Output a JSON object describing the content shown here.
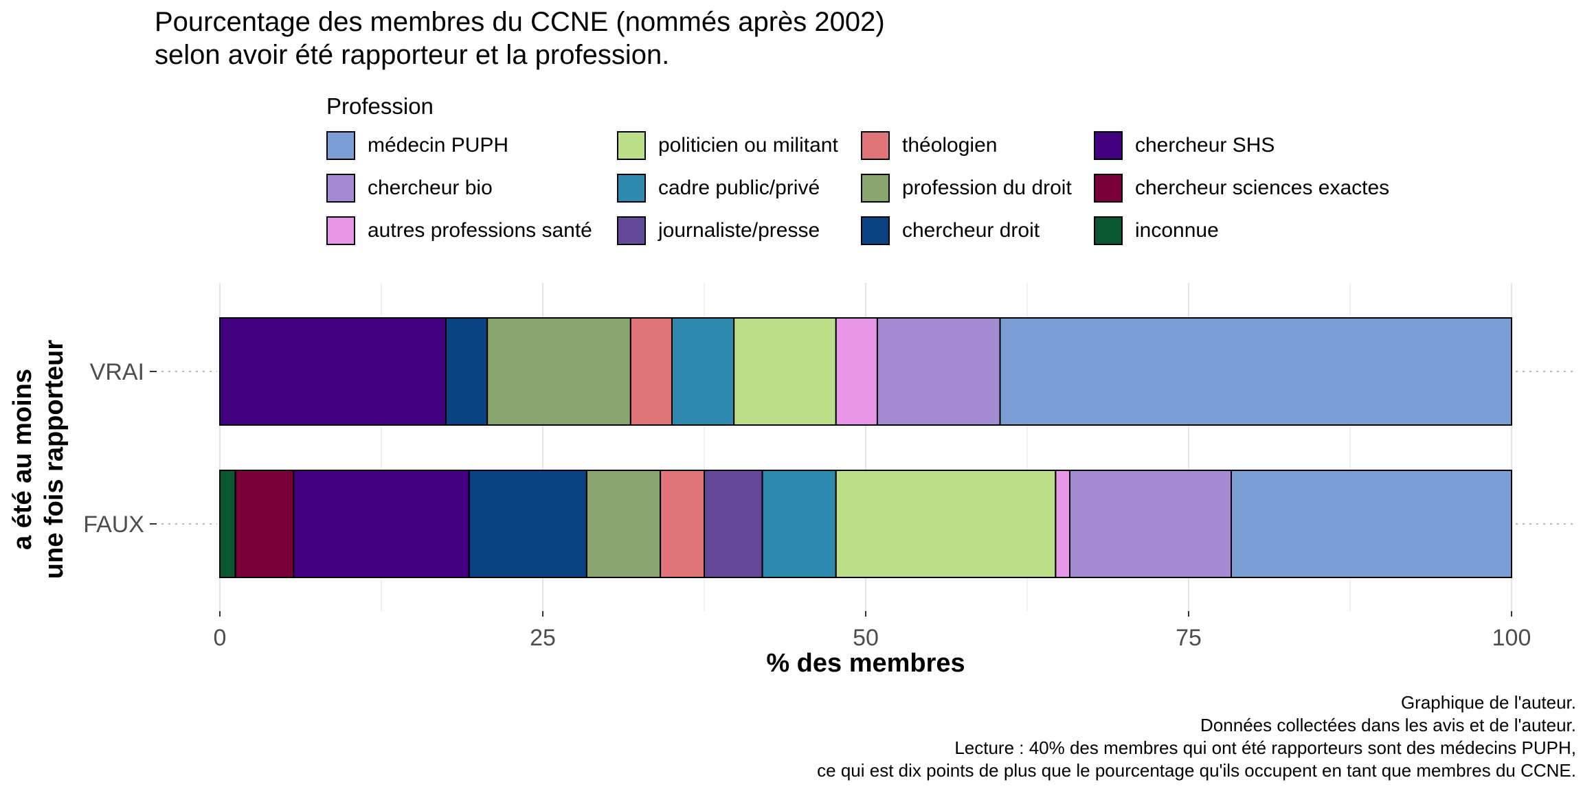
{
  "title": [
    "Pourcentage des membres du CCNE (nommés après 2002)",
    "selon avoir été rapporteur et la profession."
  ],
  "legend": {
    "title": "Profession",
    "entries": [
      {
        "name": "médecin PUPH",
        "color": "#7B9FD5"
      },
      {
        "name": "chercheur bio",
        "color": "#A48BD3"
      },
      {
        "name": "autres professions santé",
        "color": "#E697E8"
      },
      {
        "name": "politicien ou militant",
        "color": "#BADF86"
      },
      {
        "name": "cadre public/privé",
        "color": "#2E89AE"
      },
      {
        "name": "journaliste/presse",
        "color": "#634998"
      },
      {
        "name": "théologien",
        "color": "#E07579"
      },
      {
        "name": "profession du droit",
        "color": "#88A56E"
      },
      {
        "name": "chercheur droit",
        "color": "#0A4284"
      },
      {
        "name": "chercheur SHS",
        "color": "#42017E"
      },
      {
        "name": "chercheur sciences exactes",
        "color": "#7A0039"
      },
      {
        "name": "inconnue",
        "color": "#0A5630"
      }
    ]
  },
  "chart_data": {
    "type": "bar",
    "orientation": "horizontal",
    "stacked": true,
    "categories": [
      "VRAI",
      "FAUX"
    ],
    "xlabel": "% des membres",
    "ylabel": [
      "a été au moins",
      "une fois rapporteur"
    ],
    "xlim": [
      0,
      100
    ],
    "xticks": [
      0,
      25,
      50,
      75,
      100
    ],
    "stack_order": [
      "inconnue",
      "chercheur sciences exactes",
      "chercheur SHS",
      "chercheur droit",
      "profession du droit",
      "théologien",
      "journaliste/presse",
      "cadre public/privé",
      "politicien ou militant",
      "autres professions santé",
      "chercheur bio",
      "médecin PUPH"
    ],
    "series": [
      {
        "name": "inconnue",
        "values": [
          0,
          1.2
        ]
      },
      {
        "name": "chercheur sciences exactes",
        "values": [
          0,
          4.5
        ]
      },
      {
        "name": "chercheur SHS",
        "values": [
          17.5,
          13.6
        ]
      },
      {
        "name": "chercheur droit",
        "values": [
          3.2,
          9.1
        ]
      },
      {
        "name": "profession du droit",
        "values": [
          11.1,
          5.7
        ]
      },
      {
        "name": "théologien",
        "values": [
          3.2,
          3.4
        ]
      },
      {
        "name": "journaliste/presse",
        "values": [
          0,
          4.5
        ]
      },
      {
        "name": "cadre public/privé",
        "values": [
          4.8,
          5.7
        ]
      },
      {
        "name": "politicien ou militant",
        "values": [
          7.9,
          17.0
        ]
      },
      {
        "name": "autres professions santé",
        "values": [
          3.2,
          1.1
        ]
      },
      {
        "name": "chercheur bio",
        "values": [
          9.5,
          12.5
        ]
      },
      {
        "name": "médecin PUPH",
        "values": [
          39.6,
          21.7
        ]
      }
    ],
    "grid": true
  },
  "caption": [
    "Graphique de l'auteur.",
    "Données collectées dans les avis et de l'auteur.",
    "Lecture : 40% des membres qui ont été rapporteurs sont des médecins PUPH,",
    "ce qui est dix points de plus que le pourcentage qu'ils occupent en tant que membres du CCNE."
  ]
}
